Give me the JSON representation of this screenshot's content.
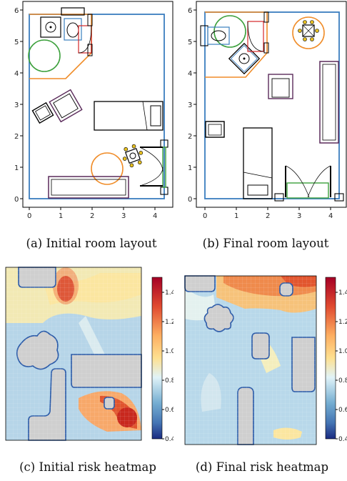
{
  "captions": {
    "a": "(a) Initial room layout",
    "b": "(b) Final room layout",
    "c": "(c) Initial risk heatmap",
    "d": "(d) Final risk heatmap"
  },
  "layout_axes": {
    "x_ticks": [
      "0",
      "1",
      "2",
      "3",
      "4"
    ],
    "y_ticks": [
      "0",
      "1",
      "2",
      "3",
      "4",
      "5",
      "6"
    ]
  },
  "colorbar": {
    "ticks": [
      "1.4",
      "1.2",
      "1.0",
      "0.8",
      "0.6",
      "0.4"
    ],
    "range": [
      0.4,
      1.5
    ]
  },
  "colors": {
    "wall": "#3a7ebf",
    "toilet_area": "#f08c28",
    "circle_green": "#3ca03c",
    "circle_orange": "#f08c28",
    "purple": "#5a2a5a",
    "red": "#d62728",
    "heat_high": "#c8281e",
    "heat_low": "#a8cde4",
    "obstacle": "#cfcfcf"
  }
}
